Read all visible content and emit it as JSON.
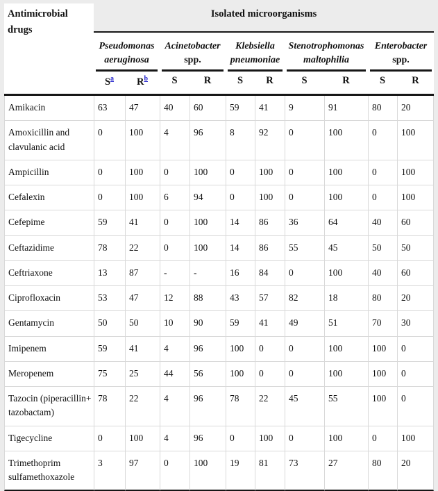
{
  "table": {
    "corner_header": "Antimicrobial drugs",
    "top_header": "Isolated microorganisms",
    "groups": [
      {
        "italic": "Pseudomonas aeruginosa",
        "plain": ""
      },
      {
        "italic": "Acinetobacter",
        "plain": "spp."
      },
      {
        "italic": "Klebsiella pneumoniae",
        "plain": ""
      },
      {
        "italic": "Stenotrophomonas maltophilia",
        "plain": ""
      },
      {
        "italic": "Enterobacter",
        "plain": "spp."
      }
    ],
    "sr_headers": [
      {
        "label": "S",
        "sup": "a"
      },
      {
        "label": "R",
        "sup": "b"
      },
      {
        "label": "S"
      },
      {
        "label": "R"
      },
      {
        "label": "S"
      },
      {
        "label": "R"
      },
      {
        "label": "S"
      },
      {
        "label": "R"
      },
      {
        "label": "S"
      },
      {
        "label": "R"
      }
    ],
    "rows": [
      {
        "drug": "Amikacin",
        "values": [
          "63",
          "47",
          "40",
          "60",
          "59",
          "41",
          "9",
          "91",
          "80",
          "20"
        ]
      },
      {
        "drug": "Amoxicillin and clavulanic acid",
        "values": [
          "0",
          "100",
          "4",
          "96",
          "8",
          "92",
          "0",
          "100",
          "0",
          "100"
        ]
      },
      {
        "drug": "Ampicillin",
        "values": [
          "0",
          "100",
          "0",
          "100",
          "0",
          "100",
          "0",
          "100",
          "0",
          "100"
        ]
      },
      {
        "drug": "Cefalexin",
        "values": [
          "0",
          "100",
          "6",
          "94",
          "0",
          "100",
          "0",
          "100",
          "0",
          "100"
        ]
      },
      {
        "drug": "Cefepime",
        "values": [
          "59",
          "41",
          "0",
          "100",
          "14",
          "86",
          "36",
          "64",
          "40",
          "60"
        ]
      },
      {
        "drug": "Ceftazidime",
        "values": [
          "78",
          "22",
          "0",
          "100",
          "14",
          "86",
          "55",
          "45",
          "50",
          "50"
        ]
      },
      {
        "drug": "Ceftriaxone",
        "values": [
          "13",
          "87",
          "-",
          "-",
          "16",
          "84",
          "0",
          "100",
          "40",
          "60"
        ]
      },
      {
        "drug": "Ciprofloxacin",
        "values": [
          "53",
          "47",
          "12",
          "88",
          "43",
          "57",
          "82",
          "18",
          "80",
          "20"
        ]
      },
      {
        "drug": "Gentamycin",
        "values": [
          "50",
          "50",
          "10",
          "90",
          "59",
          "41",
          "49",
          "51",
          "70",
          "30"
        ]
      },
      {
        "drug": "Imipenem",
        "values": [
          "59",
          "41",
          "4",
          "96",
          "100",
          "0",
          "0",
          "100",
          "100",
          "0"
        ]
      },
      {
        "drug": "Meropenem",
        "values": [
          "75",
          "25",
          "44",
          "56",
          "100",
          "0",
          "0",
          "100",
          "100",
          "0"
        ]
      },
      {
        "drug": "Tazocin (piperacillin+ tazobactam)",
        "values": [
          "78",
          "22",
          "4",
          "96",
          "78",
          "22",
          "45",
          "55",
          "100",
          "0"
        ]
      },
      {
        "drug": "Tigecycline",
        "values": [
          "0",
          "100",
          "4",
          "96",
          "0",
          "100",
          "0",
          "100",
          "0",
          "100"
        ]
      },
      {
        "drug": "Trimethoprim sulfamethoxazole",
        "values": [
          "3",
          "97",
          "0",
          "100",
          "19",
          "81",
          "73",
          "27",
          "80",
          "20"
        ]
      }
    ]
  },
  "colors": {
    "header_band": "#ececec",
    "border_dark": "#161616",
    "border_light": "#d9d9d9",
    "footnote_link_blue": "#2222cc",
    "table_background": "#ffffff"
  }
}
